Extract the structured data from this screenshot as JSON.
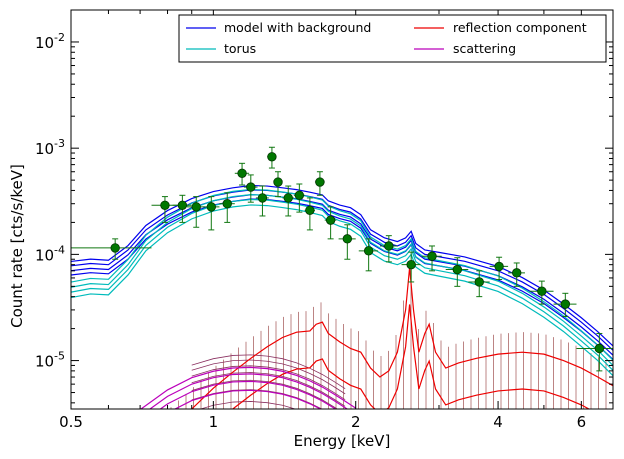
{
  "chart_data": {
    "type": "line",
    "title": "",
    "xlabel": "Energy [keV]",
    "ylabel": "Count rate [cts/s/keV]",
    "xscale": "log",
    "yscale": "log",
    "xlim": [
      0.5,
      7.0
    ],
    "ylim": [
      3.5e-06,
      0.02
    ],
    "x_ticks": [
      {
        "value": 0.5,
        "label": "0.5"
      },
      {
        "value": 1,
        "label": "1"
      },
      {
        "value": 2,
        "label": "2"
      },
      {
        "value": 4,
        "label": "4"
      },
      {
        "value": 6,
        "label": "6"
      }
    ],
    "y_ticks": [
      {
        "value": 1e-05,
        "base": "10",
        "exp": "-5"
      },
      {
        "value": 0.0001,
        "base": "10",
        "exp": "-4"
      },
      {
        "value": 0.001,
        "base": "10",
        "exp": "-3"
      },
      {
        "value": 0.01,
        "base": "10",
        "exp": "-2"
      }
    ],
    "grid": false,
    "legend": {
      "placement": "top-right",
      "entries": [
        {
          "label": "model with background",
          "color": "#0000ee"
        },
        {
          "label": "torus",
          "color": "#00bbbb"
        },
        {
          "label": "reflection component",
          "color": "#ee0000"
        },
        {
          "label": "scattering",
          "color": "#bb00bb"
        }
      ]
    },
    "data_points": [
      {
        "x": 0.62,
        "y": 0.000115,
        "xlo": 0.5,
        "xhi": 0.74,
        "ylo": 9e-05,
        "yhi": 0.00014
      },
      {
        "x": 0.79,
        "y": 0.00029,
        "xlo": 0.74,
        "xhi": 0.85,
        "ylo": 0.0002,
        "yhi": 0.00035
      },
      {
        "x": 0.86,
        "y": 0.00029,
        "xlo": 0.82,
        "xhi": 0.9,
        "ylo": 0.0002,
        "yhi": 0.00036
      },
      {
        "x": 0.92,
        "y": 0.00028,
        "xlo": 0.88,
        "xhi": 0.96,
        "ylo": 0.00018,
        "yhi": 0.00035
      },
      {
        "x": 0.99,
        "y": 0.00028,
        "xlo": 0.95,
        "xhi": 1.03,
        "ylo": 0.00017,
        "yhi": 0.00035
      },
      {
        "x": 1.07,
        "y": 0.0003,
        "xlo": 1.03,
        "xhi": 1.11,
        "ylo": 0.0002,
        "yhi": 0.00038
      },
      {
        "x": 1.15,
        "y": 0.00058,
        "xlo": 1.11,
        "xhi": 1.19,
        "ylo": 0.00045,
        "yhi": 0.00072
      },
      {
        "x": 1.2,
        "y": 0.00043,
        "xlo": 1.16,
        "xhi": 1.24,
        "ylo": 0.00031,
        "yhi": 0.00056
      },
      {
        "x": 1.27,
        "y": 0.00034,
        "xlo": 1.23,
        "xhi": 1.31,
        "ylo": 0.00023,
        "yhi": 0.00044
      },
      {
        "x": 1.33,
        "y": 0.00083,
        "xlo": 1.3,
        "xhi": 1.36,
        "ylo": 0.00065,
        "yhi": 0.00102
      },
      {
        "x": 1.37,
        "y": 0.00048,
        "xlo": 1.34,
        "xhi": 1.4,
        "ylo": 0.00035,
        "yhi": 0.0006
      },
      {
        "x": 1.44,
        "y": 0.00034,
        "xlo": 1.4,
        "xhi": 1.48,
        "ylo": 0.00023,
        "yhi": 0.00044
      },
      {
        "x": 1.52,
        "y": 0.00036,
        "xlo": 1.48,
        "xhi": 1.56,
        "ylo": 0.00025,
        "yhi": 0.00046
      },
      {
        "x": 1.6,
        "y": 0.00026,
        "xlo": 1.56,
        "xhi": 1.64,
        "ylo": 0.00017,
        "yhi": 0.00034
      },
      {
        "x": 1.68,
        "y": 0.00048,
        "xlo": 1.64,
        "xhi": 1.72,
        "ylo": 0.00036,
        "yhi": 0.0006
      },
      {
        "x": 1.77,
        "y": 0.00021,
        "xlo": 1.72,
        "xhi": 1.82,
        "ylo": 0.00014,
        "yhi": 0.00028
      },
      {
        "x": 1.92,
        "y": 0.00014,
        "xlo": 1.84,
        "xhi": 2.0,
        "ylo": 9e-05,
        "yhi": 0.00019
      },
      {
        "x": 2.13,
        "y": 0.000108,
        "xlo": 2.03,
        "xhi": 2.23,
        "ylo": 7e-05,
        "yhi": 0.00014
      },
      {
        "x": 2.35,
        "y": 0.00012,
        "xlo": 2.25,
        "xhi": 2.45,
        "ylo": 8.5e-05,
        "yhi": 0.00015
      },
      {
        "x": 2.62,
        "y": 8e-05,
        "xlo": 2.5,
        "xhi": 2.74,
        "ylo": 5.5e-05,
        "yhi": 0.000105
      },
      {
        "x": 2.9,
        "y": 9.6e-05,
        "xlo": 2.76,
        "xhi": 3.04,
        "ylo": 7e-05,
        "yhi": 0.00012
      },
      {
        "x": 3.28,
        "y": 7.2e-05,
        "xlo": 3.1,
        "xhi": 3.46,
        "ylo": 5e-05,
        "yhi": 9.3e-05
      },
      {
        "x": 3.65,
        "y": 5.5e-05,
        "xlo": 3.46,
        "xhi": 3.84,
        "ylo": 4e-05,
        "yhi": 7e-05
      },
      {
        "x": 4.02,
        "y": 7.7e-05,
        "xlo": 3.84,
        "xhi": 4.2,
        "ylo": 5.8e-05,
        "yhi": 9.4e-05
      },
      {
        "x": 4.38,
        "y": 6.7e-05,
        "xlo": 4.2,
        "xhi": 4.56,
        "ylo": 5e-05,
        "yhi": 8.3e-05
      },
      {
        "x": 4.95,
        "y": 4.5e-05,
        "xlo": 4.66,
        "xhi": 5.24,
        "ylo": 3.4e-05,
        "yhi": 5.6e-05
      },
      {
        "x": 5.55,
        "y": 3.4e-05,
        "xlo": 5.24,
        "xhi": 5.86,
        "ylo": 2.6e-05,
        "yhi": 4.3e-05
      },
      {
        "x": 6.55,
        "y": 1.3e-05,
        "xlo": 5.86,
        "xhi": 7.0,
        "ylo": 8e-06,
        "yhi": 1.8e-05
      }
    ],
    "series": [
      {
        "key": "model",
        "color": "#0000ee",
        "points": [
          [
            0.5,
            7.8e-05
          ],
          [
            0.55,
            8.2e-05
          ],
          [
            0.6,
            8e-05
          ],
          [
            0.66,
            0.00011
          ],
          [
            0.72,
            0.00017
          ],
          [
            0.8,
            0.000235
          ],
          [
            0.9,
            0.000305
          ],
          [
            1.0,
            0.000355
          ],
          [
            1.1,
            0.000385
          ],
          [
            1.2,
            0.000405
          ],
          [
            1.3,
            0.0004
          ],
          [
            1.4,
            0.000385
          ],
          [
            1.5,
            0.00037
          ],
          [
            1.6,
            0.00035
          ],
          [
            1.7,
            0.00033
          ],
          [
            1.75,
            0.00029
          ],
          [
            1.85,
            0.000265
          ],
          [
            1.95,
            0.00025
          ],
          [
            2.05,
            0.000215
          ],
          [
            2.15,
            0.000155
          ],
          [
            2.3,
            0.00013
          ],
          [
            2.45,
            0.00012
          ],
          [
            2.55,
            0.00013
          ],
          [
            2.62,
            0.00015
          ],
          [
            2.68,
            0.000115
          ],
          [
            2.8,
            0.0001
          ],
          [
            3.0,
            9.5e-05
          ],
          [
            3.4,
            8.6e-05
          ],
          [
            4.0,
            7e-05
          ],
          [
            4.5,
            5.5e-05
          ],
          [
            5.0,
            4.2e-05
          ],
          [
            5.5,
            3.1e-05
          ],
          [
            6.0,
            2.3e-05
          ],
          [
            6.5,
            1.7e-05
          ],
          [
            7.0,
            1.25e-05
          ]
        ]
      },
      {
        "key": "torus",
        "color": "#00bbbb",
        "points": [
          [
            0.5,
            4.9e-05
          ],
          [
            0.55,
            5.3e-05
          ],
          [
            0.6,
            5.2e-05
          ],
          [
            0.66,
            8e-05
          ],
          [
            0.72,
            0.000135
          ],
          [
            0.8,
            0.0002
          ],
          [
            0.9,
            0.00027
          ],
          [
            1.0,
            0.00032
          ],
          [
            1.1,
            0.00035
          ],
          [
            1.2,
            0.000365
          ],
          [
            1.3,
            0.00036
          ],
          [
            1.4,
            0.000345
          ],
          [
            1.5,
            0.00033
          ],
          [
            1.6,
            0.00031
          ],
          [
            1.7,
            0.00029
          ],
          [
            1.75,
            0.000255
          ],
          [
            1.85,
            0.00023
          ],
          [
            1.95,
            0.000215
          ],
          [
            2.05,
            0.000185
          ],
          [
            2.15,
            0.00013
          ],
          [
            2.3,
            0.000108
          ],
          [
            2.45,
            0.0001
          ],
          [
            2.55,
            0.000108
          ],
          [
            2.62,
            0.000125
          ],
          [
            2.68,
            9.5e-05
          ],
          [
            2.8,
            8.3e-05
          ],
          [
            3.0,
            7.8e-05
          ],
          [
            3.4,
            7e-05
          ],
          [
            4.0,
            5.6e-05
          ],
          [
            4.5,
            4.3e-05
          ],
          [
            5.0,
            3.2e-05
          ],
          [
            5.5,
            2.35e-05
          ],
          [
            6.0,
            1.7e-05
          ],
          [
            6.5,
            1.25e-05
          ],
          [
            7.0,
            9e-06
          ]
        ]
      },
      {
        "key": "reflection",
        "color": "#ee0000",
        "points": [
          [
            0.8,
            2.2e-06
          ],
          [
            0.9,
            3.5e-06
          ],
          [
            1.0,
            5.5e-06
          ],
          [
            1.1,
            7.8e-06
          ],
          [
            1.2,
            1.05e-05
          ],
          [
            1.3,
            1.35e-05
          ],
          [
            1.4,
            1.65e-05
          ],
          [
            1.5,
            1.85e-05
          ],
          [
            1.6,
            1.9e-05
          ],
          [
            1.65,
            2.2e-05
          ],
          [
            1.7,
            2.3e-05
          ],
          [
            1.75,
            1.8e-05
          ],
          [
            1.85,
            1.5e-05
          ],
          [
            1.95,
            1.3e-05
          ],
          [
            2.05,
            1.2e-05
          ],
          [
            2.15,
            8.5e-06
          ],
          [
            2.25,
            7e-06
          ],
          [
            2.35,
            8e-06
          ],
          [
            2.45,
            1.2e-05
          ],
          [
            2.55,
            3e-05
          ],
          [
            2.6,
            7.5e-05
          ],
          [
            2.65,
            3e-05
          ],
          [
            2.72,
            1.2e-05
          ],
          [
            2.8,
            1.8e-05
          ],
          [
            2.86,
            2.2e-05
          ],
          [
            2.95,
            1.2e-05
          ],
          [
            3.1,
            8.5e-06
          ],
          [
            3.3,
            9.5e-06
          ],
          [
            3.6,
            1.05e-05
          ],
          [
            4.0,
            1.15e-05
          ],
          [
            4.5,
            1.2e-05
          ],
          [
            5.0,
            1.15e-05
          ],
          [
            5.5,
            1e-05
          ],
          [
            6.0,
            8.5e-06
          ],
          [
            6.5,
            7e-06
          ],
          [
            7.0,
            5.8e-06
          ]
        ]
      },
      {
        "key": "scattering",
        "color": "#bb00bb",
        "points": [
          [
            0.7,
            3e-06
          ],
          [
            0.8,
            4.6e-06
          ],
          [
            0.9,
            6e-06
          ],
          [
            1.0,
            6.9e-06
          ],
          [
            1.1,
            7.4e-06
          ],
          [
            1.2,
            7.5e-06
          ],
          [
            1.3,
            7.3e-06
          ],
          [
            1.4,
            6.9e-06
          ],
          [
            1.5,
            6.3e-06
          ],
          [
            1.6,
            5.6e-06
          ],
          [
            1.7,
            4.9e-06
          ],
          [
            1.8,
            4.2e-06
          ],
          [
            1.9,
            3.6e-06
          ],
          [
            2.0,
            3.1e-06
          ]
        ]
      }
    ]
  }
}
